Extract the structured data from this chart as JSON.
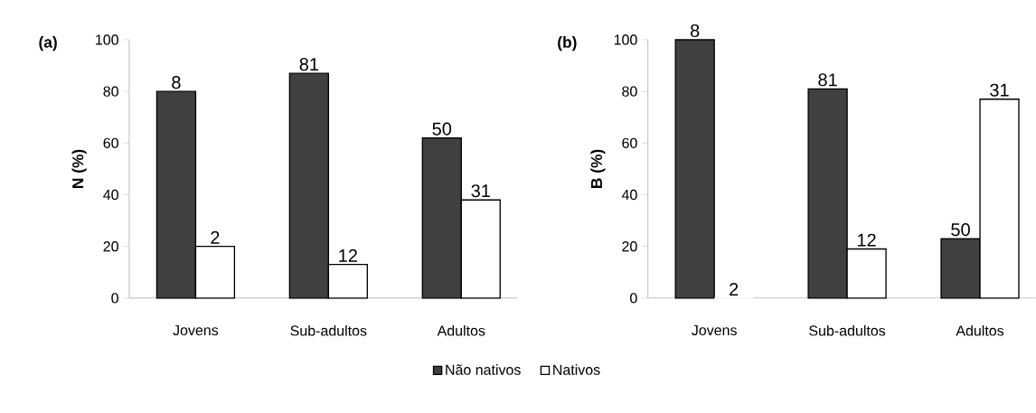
{
  "chart_data": [
    {
      "type": "bar",
      "title": "(a)",
      "ylabel": "N (%)",
      "categories": [
        "Jovens",
        "Sub-adultos",
        "Adultos"
      ],
      "ylim": [
        0,
        100
      ],
      "yticks": [
        0,
        20,
        40,
        60,
        80,
        100
      ],
      "legend": "bottom",
      "annotations": [
        "8",
        "81",
        "50",
        "2",
        "12",
        "31"
      ],
      "series": [
        {
          "name": "Não nativos",
          "color": "#404040",
          "values": [
            80,
            87,
            62
          ]
        },
        {
          "name": "Nativos",
          "color": "#ffffff",
          "values": [
            20,
            13,
            38
          ]
        }
      ]
    },
    {
      "type": "bar",
      "title": "(b)",
      "ylabel": "B (%)",
      "categories": [
        "Jovens",
        "Sub-adultos",
        "Adultos"
      ],
      "ylim": [
        0,
        100
      ],
      "yticks": [
        0,
        20,
        40,
        60,
        80,
        100
      ],
      "annotations": [
        "8",
        "81",
        "50",
        "2",
        "12",
        "31"
      ],
      "series": [
        {
          "color": "#404040",
          "values": [
            100,
            81,
            23
          ]
        },
        {
          "color": "#ffffff",
          "values": [
            0,
            19,
            77
          ]
        }
      ]
    }
  ]
}
